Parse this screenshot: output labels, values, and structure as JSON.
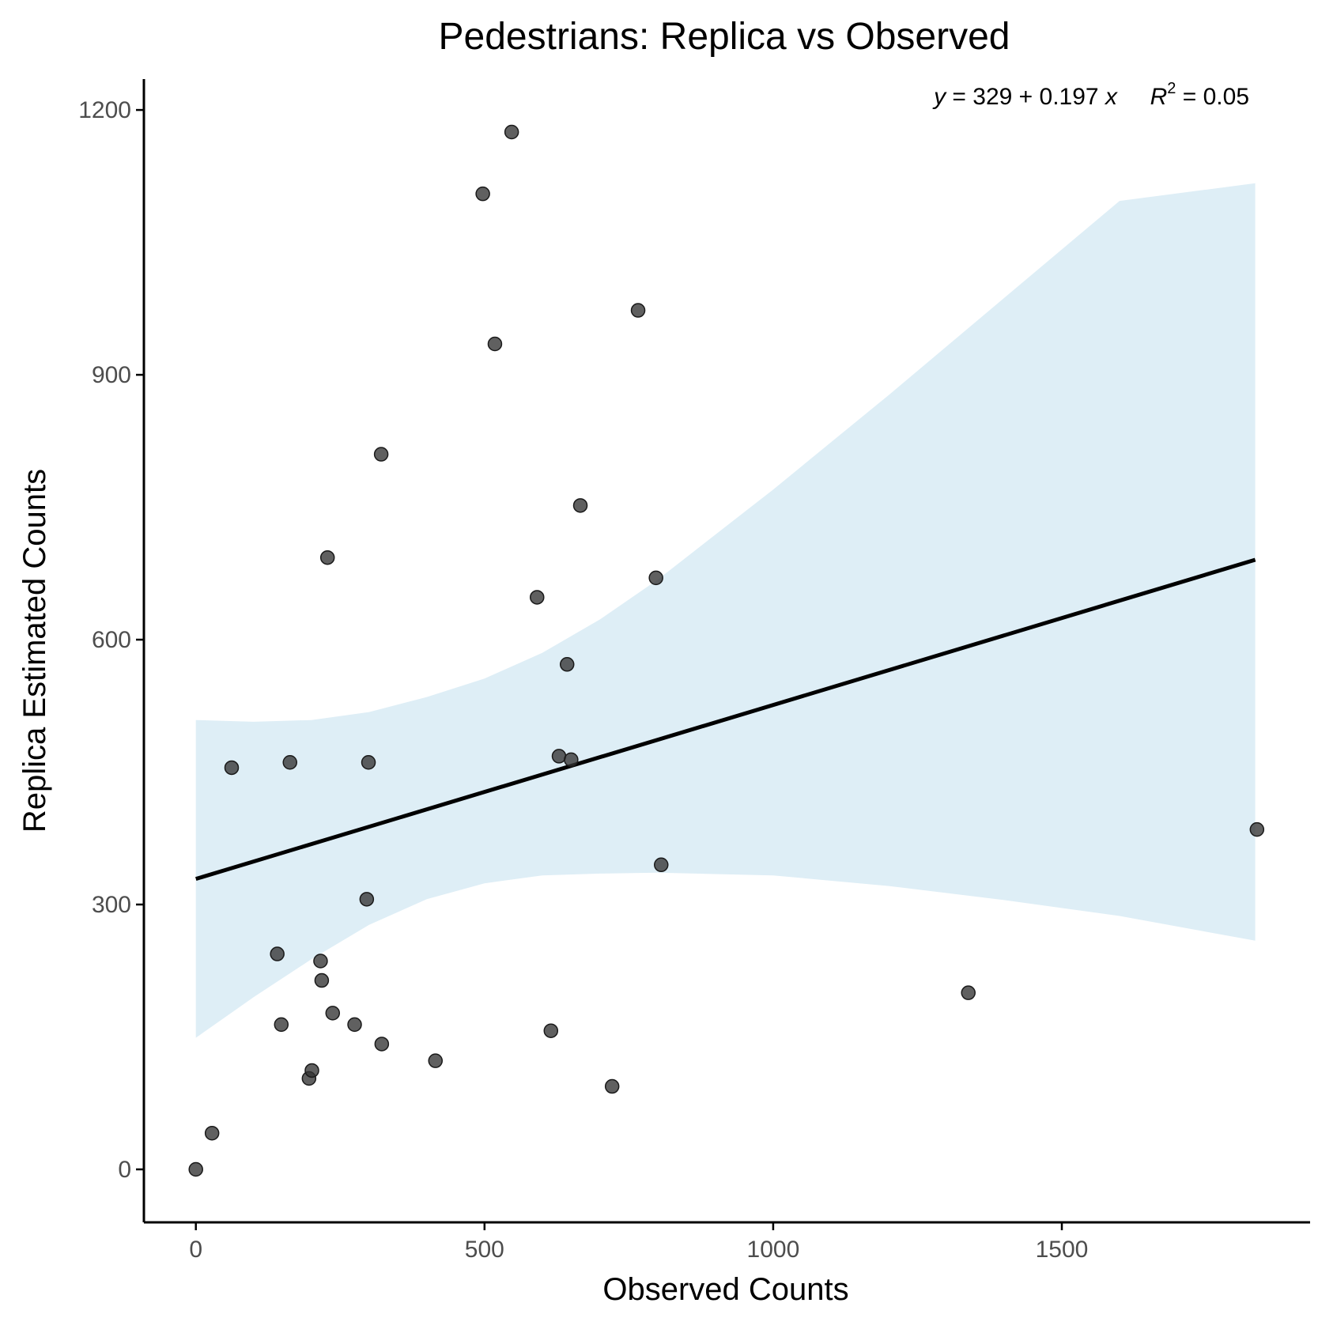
{
  "chart_data": {
    "type": "scatter",
    "title": "Pedestrians: Replica vs Observed",
    "xlabel": "Observed Counts",
    "ylabel": "Replica Estimated Counts",
    "xlim": [
      -90,
      1930
    ],
    "ylim": [
      -60,
      1235
    ],
    "x_ticks": [
      0,
      500,
      1000,
      1500
    ],
    "x_tick_labels": [
      "0",
      "500",
      "1000",
      "1500"
    ],
    "y_ticks": [
      0,
      300,
      600,
      900,
      1200
    ],
    "y_tick_labels": [
      "0",
      "300",
      "600",
      "900",
      "1200"
    ],
    "grid": false,
    "annotation": {
      "y_var": "y",
      "equation_rest": " = 329 + 0.197 ",
      "x_var": "x",
      "r_symbol": "R",
      "r_superscript": "2",
      "r_value": " = 0.05"
    },
    "fit": {
      "intercept": 329,
      "slope": 0.197,
      "x_range": [
        0,
        1835
      ]
    },
    "confidence_band": {
      "x": [
        0,
        100,
        200,
        300,
        400,
        500,
        600,
        700,
        800,
        1000,
        1200,
        1400,
        1600,
        1835
      ],
      "upper": [
        509,
        507,
        509,
        518,
        535,
        556,
        585,
        623,
        668,
        770,
        877,
        987,
        1097,
        1117
      ],
      "lower": [
        149,
        195,
        238,
        277,
        306,
        324,
        333,
        335,
        336,
        333,
        321,
        305,
        287,
        259
      ]
    },
    "points": [
      {
        "x": 0,
        "y": 0
      },
      {
        "x": 28,
        "y": 41
      },
      {
        "x": 62,
        "y": 455
      },
      {
        "x": 141,
        "y": 244
      },
      {
        "x": 148,
        "y": 164
      },
      {
        "x": 163,
        "y": 461
      },
      {
        "x": 196,
        "y": 103
      },
      {
        "x": 201,
        "y": 112
      },
      {
        "x": 216,
        "y": 236
      },
      {
        "x": 218,
        "y": 214
      },
      {
        "x": 228,
        "y": 693
      },
      {
        "x": 237,
        "y": 177
      },
      {
        "x": 275,
        "y": 164
      },
      {
        "x": 296,
        "y": 306
      },
      {
        "x": 299,
        "y": 461
      },
      {
        "x": 321,
        "y": 810
      },
      {
        "x": 322,
        "y": 142
      },
      {
        "x": 415,
        "y": 123
      },
      {
        "x": 497,
        "y": 1105
      },
      {
        "x": 518,
        "y": 935
      },
      {
        "x": 547,
        "y": 1175
      },
      {
        "x": 591,
        "y": 648
      },
      {
        "x": 615,
        "y": 157
      },
      {
        "x": 629,
        "y": 468
      },
      {
        "x": 643,
        "y": 572
      },
      {
        "x": 650,
        "y": 464
      },
      {
        "x": 666,
        "y": 752
      },
      {
        "x": 721,
        "y": 94
      },
      {
        "x": 766,
        "y": 973
      },
      {
        "x": 797,
        "y": 670
      },
      {
        "x": 806,
        "y": 345
      },
      {
        "x": 1338,
        "y": 200
      },
      {
        "x": 1838,
        "y": 385
      }
    ]
  }
}
